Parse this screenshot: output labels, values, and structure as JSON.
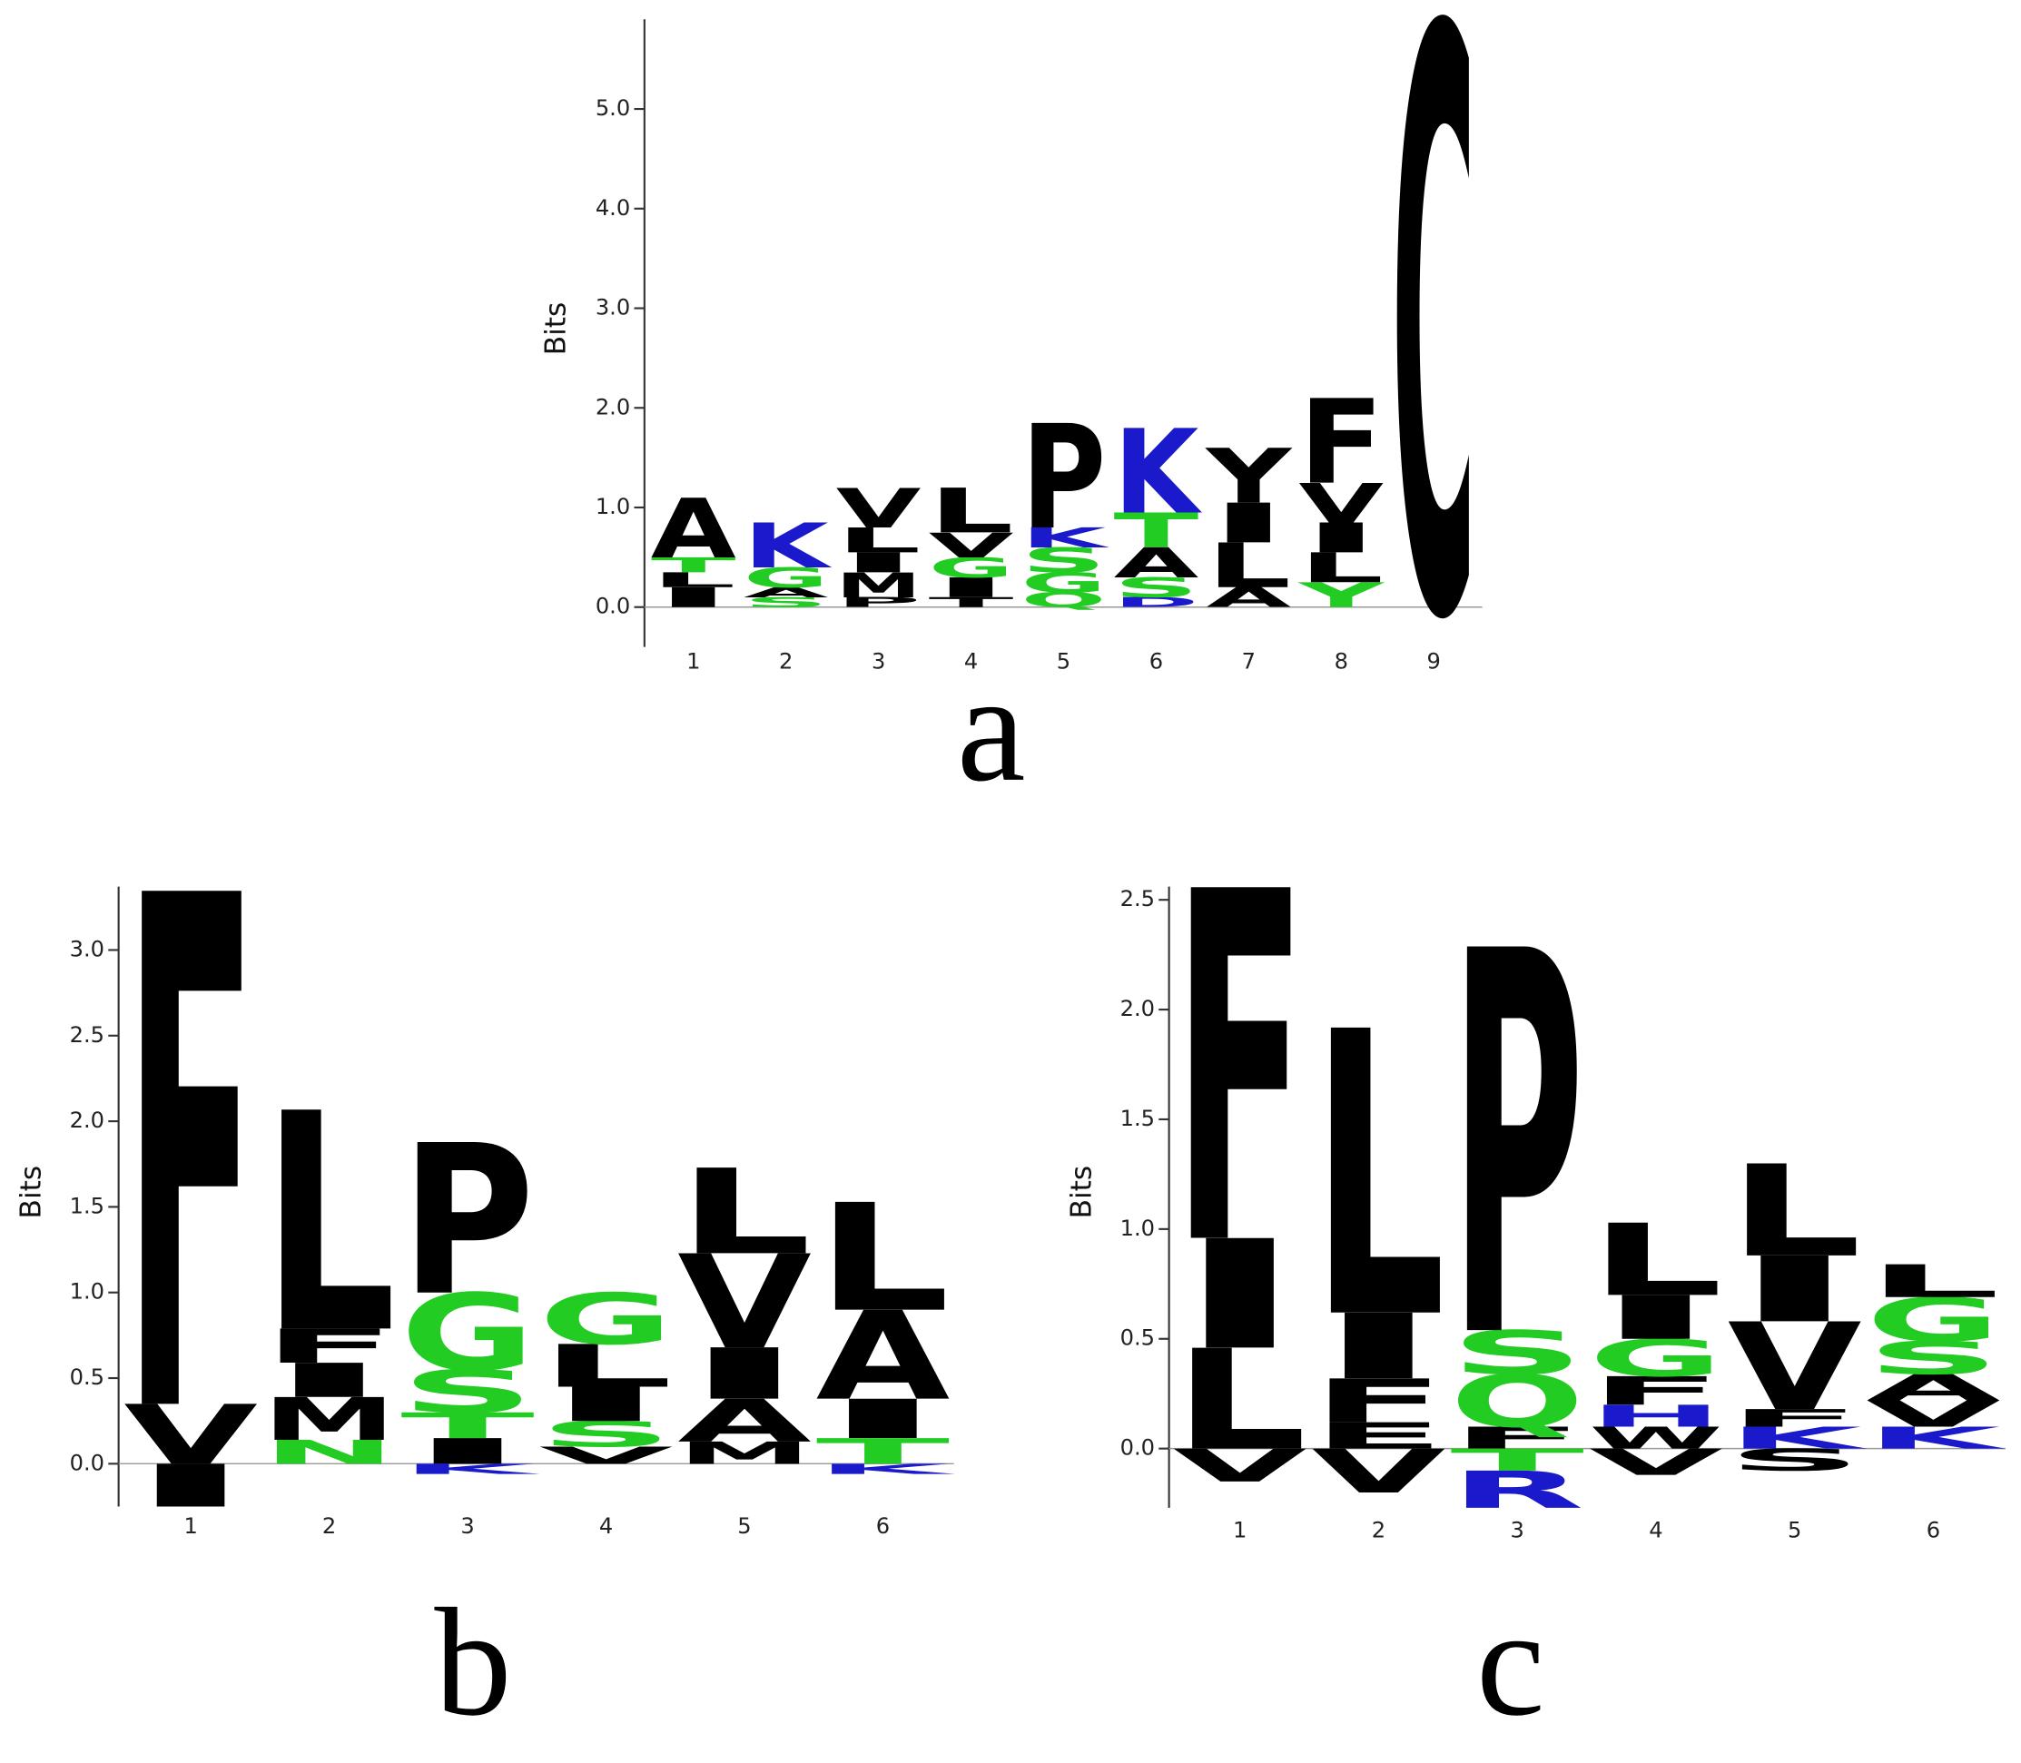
{
  "chart_data": [
    {
      "type": "logo",
      "label": "a",
      "ylabel": "Bits",
      "ylim": [
        -0.4,
        5.9
      ],
      "yticks": [
        {
          "value": 0,
          "label": "0.0"
        },
        {
          "value": 1,
          "label": "1.0"
        },
        {
          "value": 2,
          "label": "2.0"
        },
        {
          "value": 3,
          "label": "3.0"
        },
        {
          "value": 4,
          "label": "4.0"
        },
        {
          "value": 5,
          "label": "5.0"
        }
      ],
      "categories": [
        "1",
        "2",
        "3",
        "4",
        "5",
        "6",
        "7",
        "8",
        "9"
      ],
      "stacks": [
        [
          {
            "letter": "I",
            "color": "#000000",
            "value": 0.2
          },
          {
            "letter": "L",
            "color": "#000000",
            "value": 0.15
          },
          {
            "letter": "T",
            "color": "#22cc22",
            "value": 0.15
          },
          {
            "letter": "A",
            "color": "#000000",
            "value": 0.6
          }
        ],
        [
          {
            "letter": "S",
            "color": "#22cc22",
            "value": 0.1
          },
          {
            "letter": "A",
            "color": "#000000",
            "value": 0.1
          },
          {
            "letter": "G",
            "color": "#22cc22",
            "value": 0.2
          },
          {
            "letter": "K",
            "color": "#1a1acc",
            "value": 0.45
          }
        ],
        [
          {
            "letter": "P",
            "color": "#000000",
            "value": 0.1
          },
          {
            "letter": "M",
            "color": "#000000",
            "value": 0.25
          },
          {
            "letter": "I",
            "color": "#000000",
            "value": 0.2
          },
          {
            "letter": "L",
            "color": "#000000",
            "value": 0.25
          },
          {
            "letter": "V",
            "color": "#000000",
            "value": 0.4
          }
        ],
        [
          {
            "letter": "T",
            "color": "#000000",
            "value": 0.1
          },
          {
            "letter": "I",
            "color": "#000000",
            "value": 0.2
          },
          {
            "letter": "G",
            "color": "#22cc22",
            "value": 0.2
          },
          {
            "letter": "V",
            "color": "#000000",
            "value": 0.25
          },
          {
            "letter": "L",
            "color": "#000000",
            "value": 0.45
          }
        ],
        [
          {
            "letter": "Q",
            "color": "#22cc22",
            "value": 0.15
          },
          {
            "letter": "G",
            "color": "#22cc22",
            "value": 0.2
          },
          {
            "letter": "S",
            "color": "#22cc22",
            "value": 0.25
          },
          {
            "letter": "K",
            "color": "#1a1acc",
            "value": 0.2
          },
          {
            "letter": "P",
            "color": "#000000",
            "value": 1.05
          }
        ],
        [
          {
            "letter": "D",
            "color": "#1a1acc",
            "value": 0.1
          },
          {
            "letter": "S",
            "color": "#22cc22",
            "value": 0.2
          },
          {
            "letter": "A",
            "color": "#000000",
            "value": 0.3
          },
          {
            "letter": "T",
            "color": "#22cc22",
            "value": 0.35
          },
          {
            "letter": "K",
            "color": "#1a1acc",
            "value": 0.85
          }
        ],
        [
          {
            "letter": "A",
            "color": "#000000",
            "value": 0.2
          },
          {
            "letter": "L",
            "color": "#000000",
            "value": 0.45
          },
          {
            "letter": "I",
            "color": "#000000",
            "value": 0.4
          },
          {
            "letter": "Y",
            "color": "#000000",
            "value": 0.55
          }
        ],
        [
          {
            "letter": "Y",
            "color": "#22cc22",
            "value": 0.25
          },
          {
            "letter": "L",
            "color": "#000000",
            "value": 0.3
          },
          {
            "letter": "I",
            "color": "#000000",
            "value": 0.3
          },
          {
            "letter": "V",
            "color": "#000000",
            "value": 0.4
          },
          {
            "letter": "F",
            "color": "#000000",
            "value": 0.85
          }
        ],
        [
          {
            "letter": "C",
            "color": "#000000",
            "value": 5.85
          }
        ]
      ],
      "below": [
        [],
        [],
        [],
        [],
        [],
        [],
        [],
        [],
        []
      ]
    },
    {
      "type": "logo",
      "label": "b",
      "ylabel": "Bits",
      "ylim": [
        -0.25,
        3.37
      ],
      "yticks": [
        {
          "value": 0,
          "label": "0.0"
        },
        0.5,
        {
          "value": 1,
          "label": "1.0"
        },
        1.5,
        {
          "value": 2,
          "label": "2.0"
        },
        2.5,
        {
          "value": 3,
          "label": "3.0"
        }
      ],
      "categories": [
        "1",
        "2",
        "3",
        "4",
        "5",
        "6"
      ],
      "stacks": [
        [
          {
            "letter": "V",
            "color": "#000000",
            "value": 0.35
          },
          {
            "letter": "F",
            "color": "#000000",
            "value": 3.0
          }
        ],
        [
          {
            "letter": "N",
            "color": "#22cc22",
            "value": 0.14
          },
          {
            "letter": "M",
            "color": "#000000",
            "value": 0.25
          },
          {
            "letter": "I",
            "color": "#000000",
            "value": 0.2
          },
          {
            "letter": "F",
            "color": "#000000",
            "value": 0.2
          },
          {
            "letter": "L",
            "color": "#000000",
            "value": 1.28
          }
        ],
        [
          {
            "letter": "I",
            "color": "#000000",
            "value": 0.15
          },
          {
            "letter": "T",
            "color": "#22cc22",
            "value": 0.15
          },
          {
            "letter": "S",
            "color": "#22cc22",
            "value": 0.25
          },
          {
            "letter": "G",
            "color": "#22cc22",
            "value": 0.45
          },
          {
            "letter": "P",
            "color": "#000000",
            "value": 0.88
          }
        ],
        [
          {
            "letter": "V",
            "color": "#000000",
            "value": 0.1
          },
          {
            "letter": "S",
            "color": "#22cc22",
            "value": 0.15
          },
          {
            "letter": "I",
            "color": "#000000",
            "value": 0.2
          },
          {
            "letter": "L",
            "color": "#000000",
            "value": 0.25
          },
          {
            "letter": "G",
            "color": "#22cc22",
            "value": 0.3
          }
        ],
        [
          {
            "letter": "M",
            "color": "#000000",
            "value": 0.13
          },
          {
            "letter": "A",
            "color": "#000000",
            "value": 0.25
          },
          {
            "letter": "I",
            "color": "#000000",
            "value": 0.3
          },
          {
            "letter": "V",
            "color": "#000000",
            "value": 0.55
          },
          {
            "letter": "L",
            "color": "#000000",
            "value": 0.5
          }
        ],
        [
          {
            "letter": "T",
            "color": "#22cc22",
            "value": 0.15
          },
          {
            "letter": "I",
            "color": "#000000",
            "value": 0.23
          },
          {
            "letter": "A",
            "color": "#000000",
            "value": 0.52
          },
          {
            "letter": "L",
            "color": "#000000",
            "value": 0.63
          }
        ]
      ],
      "below": [
        [
          {
            "letter": "I",
            "color": "#000000",
            "value": 0.25
          }
        ],
        [],
        [
          {
            "letter": "K",
            "color": "#1a1acc",
            "value": 0.06
          }
        ],
        [],
        [],
        [
          {
            "letter": "K",
            "color": "#1a1acc",
            "value": 0.06
          }
        ]
      ]
    },
    {
      "type": "logo",
      "label": "c",
      "ylabel": "Bits",
      "ylim": [
        -0.27,
        2.56
      ],
      "yticks": [
        {
          "value": 0,
          "label": "0.0"
        },
        0.5,
        {
          "value": 1,
          "label": "1.0"
        },
        1.5,
        {
          "value": 2,
          "label": "2.0"
        },
        2.5
      ],
      "categories": [
        "1",
        "2",
        "3",
        "4",
        "5",
        "6"
      ],
      "stacks": [
        [
          {
            "letter": "L",
            "color": "#000000",
            "value": 0.46
          },
          {
            "letter": "I",
            "color": "#000000",
            "value": 0.5
          },
          {
            "letter": "F",
            "color": "#000000",
            "value": 1.6
          }
        ],
        [
          {
            "letter": "E",
            "color": "#000000",
            "value": 0.12
          },
          {
            "letter": "F",
            "color": "#000000",
            "value": 0.2
          },
          {
            "letter": "I",
            "color": "#000000",
            "value": 0.3
          },
          {
            "letter": "L",
            "color": "#000000",
            "value": 1.3
          }
        ],
        [
          {
            "letter": "F",
            "color": "#000000",
            "value": 0.1
          },
          {
            "letter": "Q",
            "color": "#22cc22",
            "value": 0.24
          },
          {
            "letter": "S",
            "color": "#22cc22",
            "value": 0.2
          },
          {
            "letter": "P",
            "color": "#000000",
            "value": 1.75
          }
        ],
        [
          {
            "letter": "W",
            "color": "#000000",
            "value": 0.1
          },
          {
            "letter": "H",
            "color": "#1a1acc",
            "value": 0.1
          },
          {
            "letter": "F",
            "color": "#000000",
            "value": 0.13
          },
          {
            "letter": "G",
            "color": "#22cc22",
            "value": 0.17
          },
          {
            "letter": "I",
            "color": "#000000",
            "value": 0.2
          },
          {
            "letter": "L",
            "color": "#000000",
            "value": 0.33
          }
        ],
        [
          {
            "letter": "K",
            "color": "#1a1acc",
            "value": 0.1
          },
          {
            "letter": "F",
            "color": "#000000",
            "value": 0.08
          },
          {
            "letter": "V",
            "color": "#000000",
            "value": 0.4
          },
          {
            "letter": "I",
            "color": "#000000",
            "value": 0.3
          },
          {
            "letter": "L",
            "color": "#000000",
            "value": 0.42
          }
        ],
        [
          {
            "letter": "K",
            "color": "#1a1acc",
            "value": 0.1
          },
          {
            "letter": "V",
            "color": "#000000",
            "value": 0.12
          },
          {
            "letter": "A",
            "color": "#000000",
            "value": 0.12
          },
          {
            "letter": "S",
            "color": "#22cc22",
            "value": 0.15
          },
          {
            "letter": "G",
            "color": "#22cc22",
            "value": 0.2
          },
          {
            "letter": "L",
            "color": "#000000",
            "value": 0.15
          }
        ]
      ],
      "below": [
        [
          {
            "letter": "V",
            "color": "#000000",
            "value": 0.15
          }
        ],
        [
          {
            "letter": "V",
            "color": "#000000",
            "value": 0.2
          }
        ],
        [
          {
            "letter": "T",
            "color": "#22cc22",
            "value": 0.1
          },
          {
            "letter": "R",
            "color": "#1a1acc",
            "value": 0.17
          }
        ],
        [
          {
            "letter": "V",
            "color": "#000000",
            "value": 0.12
          }
        ],
        [
          {
            "letter": "S",
            "color": "#000000",
            "value": 0.1
          }
        ],
        []
      ]
    }
  ]
}
